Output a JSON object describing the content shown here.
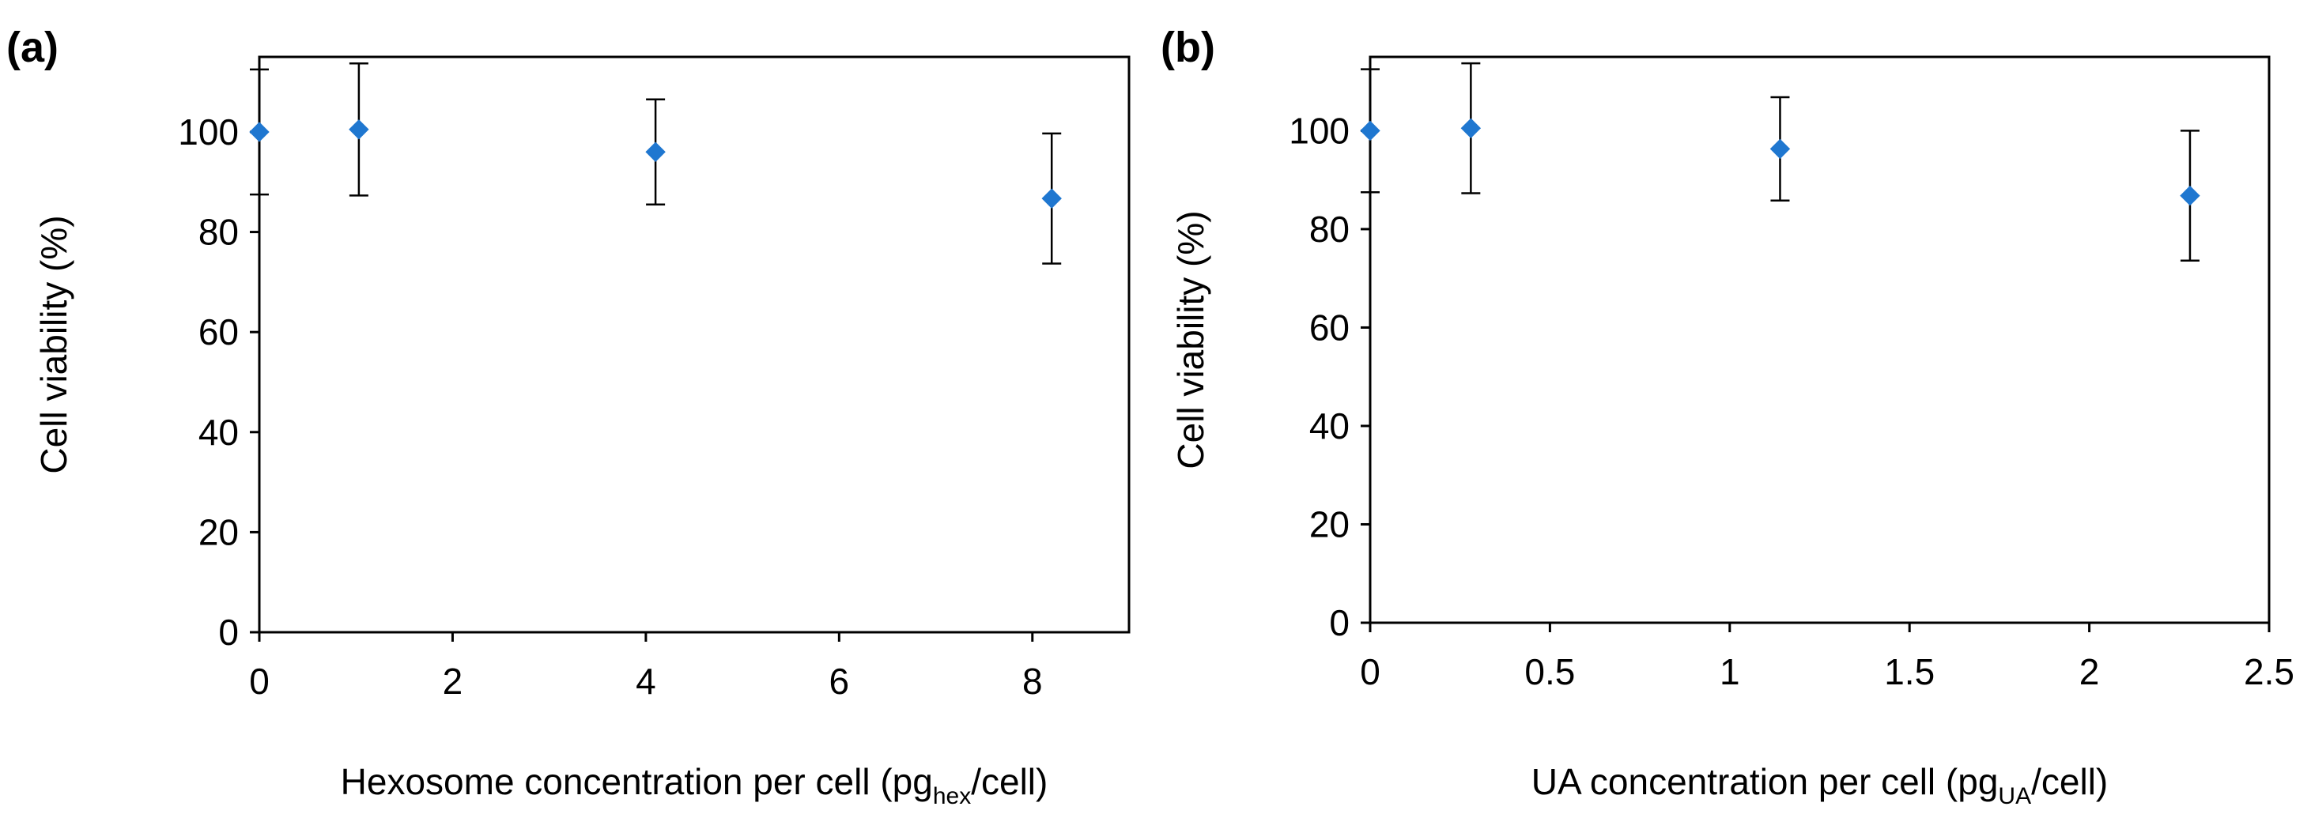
{
  "chart_data": [
    {
      "type": "scatter",
      "panel_label": "(a)",
      "title": "",
      "xlabel": {
        "prefix": "Hexosome concentration per cell (pg",
        "subscript": "hex",
        "suffix": "/cell)"
      },
      "ylabel": "Cell viability (%)",
      "xlim": [
        0,
        9
      ],
      "ylim": [
        0,
        115
      ],
      "xticks": [
        0,
        2,
        4,
        6,
        8
      ],
      "xtick_labels": [
        "0",
        "2",
        "4",
        "6",
        "8"
      ],
      "yticks": [
        0,
        20,
        40,
        60,
        80,
        100
      ],
      "ytick_labels": [
        "0",
        "20",
        "40",
        "60",
        "80",
        "100"
      ],
      "grid": false,
      "marker_color": "#1f77d0",
      "series": [
        {
          "name": "Cell viability",
          "x": [
            0,
            1.03,
            4.1,
            8.2
          ],
          "y": [
            100,
            100.5,
            96,
            86.7
          ],
          "err": [
            12.5,
            13.2,
            10.5,
            13
          ]
        }
      ]
    },
    {
      "type": "scatter",
      "panel_label": "(b)",
      "title": "",
      "xlabel": {
        "prefix": "UA concentration per cell (pg",
        "subscript": "UA",
        "suffix": "/cell)"
      },
      "ylabel": "Cell viability (%)",
      "xlim": [
        0,
        2.5
      ],
      "ylim": [
        0,
        115
      ],
      "xticks": [
        0,
        0.5,
        1,
        1.5,
        2,
        2.5
      ],
      "xtick_labels": [
        "0",
        "0.5",
        "1",
        "1.5",
        "2",
        "2.5"
      ],
      "yticks": [
        0,
        20,
        40,
        60,
        80,
        100
      ],
      "ytick_labels": [
        "0",
        "20",
        "40",
        "60",
        "80",
        "100"
      ],
      "grid": false,
      "marker_color": "#1f77d0",
      "series": [
        {
          "name": "Cell viability",
          "x": [
            0,
            0.28,
            1.14,
            2.28
          ],
          "y": [
            100,
            100.5,
            96.3,
            86.8
          ],
          "err": [
            12.5,
            13.2,
            10.5,
            13.2
          ]
        }
      ]
    }
  ]
}
